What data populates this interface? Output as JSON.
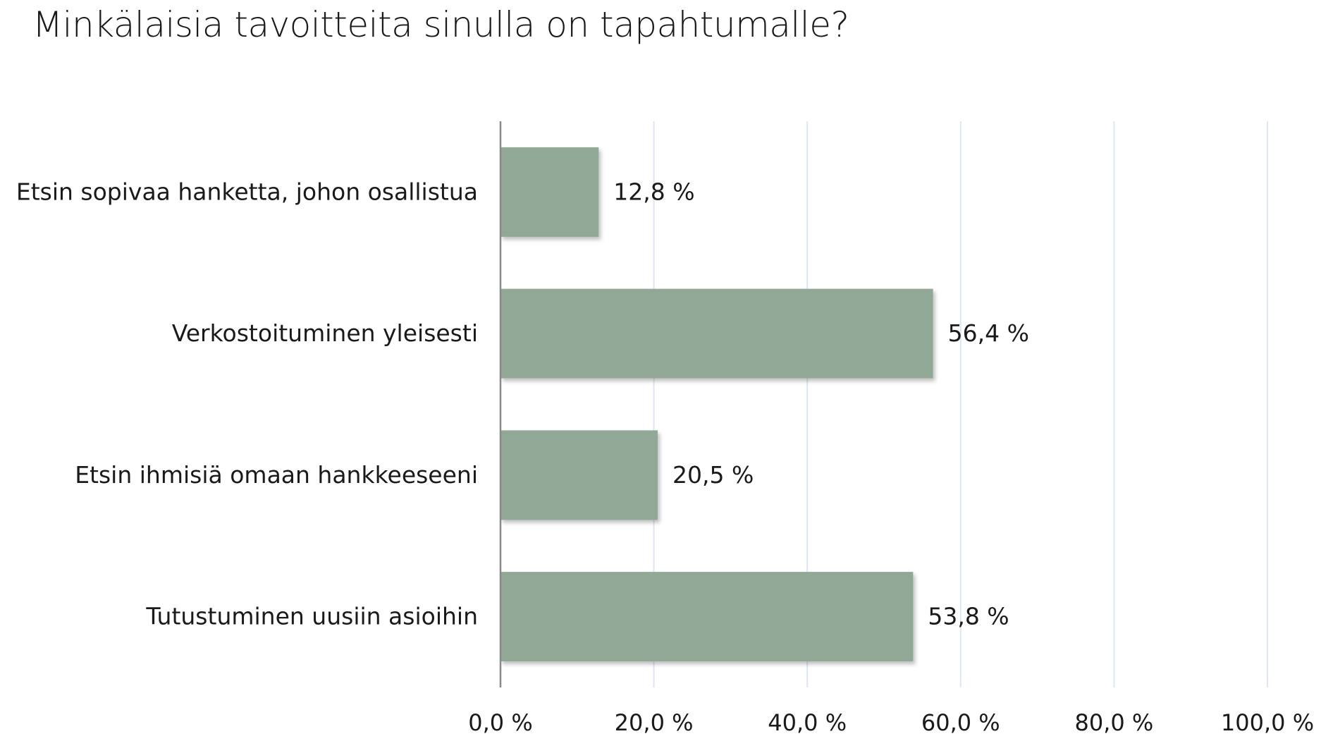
{
  "chart_data": {
    "type": "bar",
    "orientation": "horizontal",
    "title": "Minkälaisia tavoitteita sinulla on tapahtumalle?",
    "categories": [
      "Etsin sopivaa hanketta, johon osallistua",
      "Verkostoituminen yleisesti",
      "Etsin ihmisiä omaan hankkeeseeni",
      "Tutustuminen uusiin asioihin"
    ],
    "values": [
      12.8,
      56.4,
      20.5,
      53.8
    ],
    "data_labels": [
      "12,8 %",
      "56,4 %",
      "20,5 %",
      "53,8 %"
    ],
    "xlim": [
      0,
      100
    ],
    "x_ticks": [
      0,
      20,
      40,
      60,
      80,
      100
    ],
    "x_tick_labels": [
      "0,0 %",
      "20,0 %",
      "40,0 %",
      "60,0 %",
      "80,0 %",
      "100,0 %"
    ],
    "grid": true,
    "bar_color": "#91a897",
    "grid_color": "#dde6f2",
    "axis_color": "#8a8a8a"
  }
}
